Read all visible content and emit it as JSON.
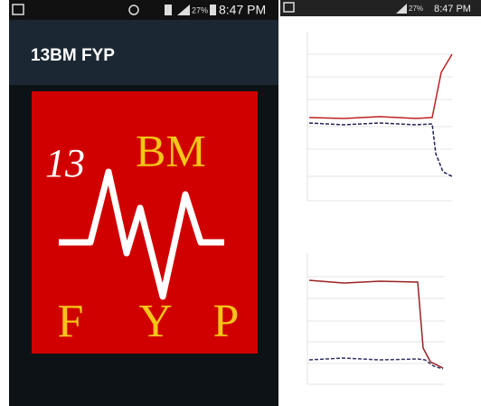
{
  "left_screen": {
    "status_bar": {
      "battery": "27%",
      "time": "8:47 PM"
    },
    "app_title": "13BM FYP",
    "logo": {
      "number": "13",
      "letters": "BM",
      "bottom": [
        "F",
        "Y",
        "P"
      ]
    }
  },
  "right_screen": {
    "status_bar": {
      "battery": "27%",
      "time": "8:47 PM"
    }
  }
}
